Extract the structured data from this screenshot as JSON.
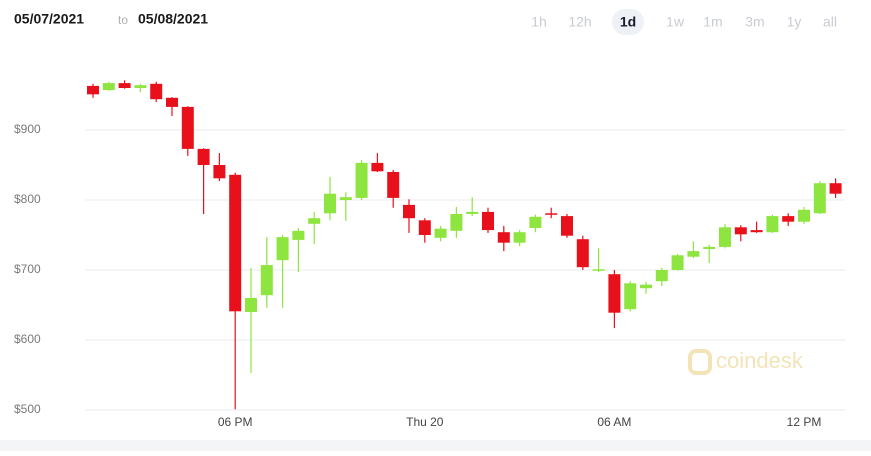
{
  "header": {
    "from": "05/07/2021",
    "to_word": "to",
    "to": "05/08/2021",
    "ranges": [
      "1h",
      "12h",
      "1d",
      "1w",
      "1m",
      "3m",
      "1y",
      "all"
    ],
    "selected": "1d"
  },
  "watermark": "coindesk",
  "chart_data": {
    "type": "candlestick",
    "categories": [
      null,
      null,
      null,
      null,
      null,
      null,
      null,
      null,
      null,
      "06 PM",
      null,
      null,
      null,
      null,
      null,
      null,
      null,
      null,
      null,
      null,
      null,
      "Thu 20",
      null,
      null,
      null,
      null,
      null,
      null,
      null,
      null,
      null,
      null,
      null,
      "06 AM",
      null,
      null,
      null,
      null,
      null,
      null,
      null,
      null,
      null,
      null,
      null,
      "12 PM",
      null,
      null
    ],
    "open": [
      963,
      957,
      967,
      960,
      966,
      946,
      933,
      873,
      850,
      836,
      640,
      664,
      714,
      743,
      766,
      781,
      800,
      803,
      853,
      840,
      793,
      771,
      746,
      756,
      780,
      783,
      754,
      739,
      760,
      781,
      777,
      744,
      699,
      694,
      644,
      674,
      684,
      700,
      719,
      730,
      733,
      761,
      757,
      754,
      777,
      769,
      781,
      824
    ],
    "high": [
      966,
      969,
      971,
      966,
      969,
      947,
      934,
      874,
      867,
      839,
      703,
      747,
      750,
      760,
      783,
      833,
      811,
      857,
      867,
      843,
      801,
      774,
      763,
      790,
      804,
      789,
      763,
      757,
      779,
      789,
      780,
      749,
      731,
      700,
      684,
      683,
      703,
      723,
      741,
      736,
      766,
      764,
      769,
      779,
      781,
      790,
      827,
      831
    ],
    "low": [
      946,
      956,
      959,
      954,
      940,
      920,
      863,
      780,
      827,
      501,
      553,
      646,
      646,
      697,
      737,
      771,
      770,
      800,
      840,
      789,
      753,
      739,
      741,
      746,
      777,
      753,
      727,
      734,
      754,
      774,
      746,
      700,
      697,
      617,
      641,
      666,
      677,
      699,
      717,
      710,
      731,
      741,
      753,
      753,
      763,
      766,
      780,
      803
    ],
    "close": [
      951,
      967,
      960,
      964,
      944,
      933,
      873,
      850,
      831,
      641,
      660,
      707,
      747,
      756,
      774,
      809,
      804,
      853,
      841,
      803,
      774,
      750,
      759,
      780,
      783,
      757,
      739,
      754,
      776,
      779,
      749,
      704,
      701,
      639,
      681,
      679,
      700,
      721,
      727,
      733,
      761,
      751,
      754,
      777,
      769,
      786,
      824,
      809
    ],
    "up_color": "#8ee53f",
    "down_color": "#e8101a",
    "ylim": [
      500,
      1000
    ],
    "yticks": [
      {
        "value": 500,
        "label": "$500"
      },
      {
        "value": 600,
        "label": "$600"
      },
      {
        "value": 700,
        "label": "$700"
      },
      {
        "value": 800,
        "label": "$800"
      },
      {
        "value": 900,
        "label": "$900"
      }
    ],
    "grid": true
  }
}
